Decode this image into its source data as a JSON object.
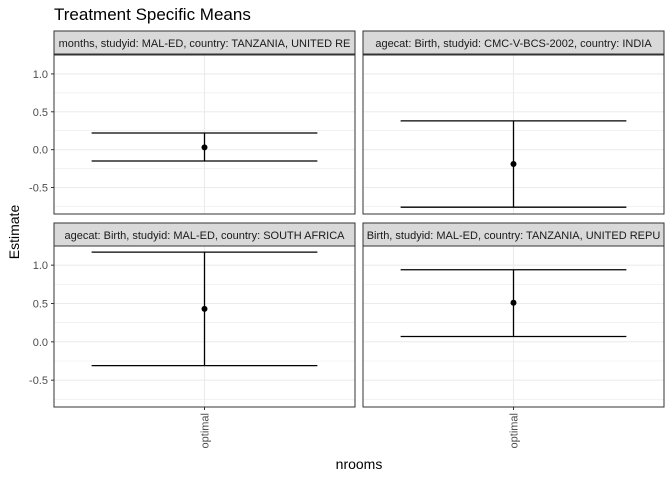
{
  "chart_data": {
    "type": "errorbar",
    "title": "Treatment Specific Means",
    "xlabel": "nrooms",
    "ylabel": "Estimate",
    "ylim": [
      -0.85,
      1.25
    ],
    "yticks": [
      -0.5,
      0.0,
      0.5,
      1.0
    ],
    "ytick_labels": [
      "-0.5",
      "0.0",
      "0.5",
      "1.0"
    ],
    "categories": [
      "optimal"
    ],
    "grid": true,
    "legend": "none",
    "colors": {
      "strip_fill": "#d9d9d9",
      "panel_border": "#333333",
      "grid": "#ebebeb",
      "mark": "#000000"
    },
    "panels": [
      {
        "strip": "months, studyid: MAL-ED, country: TANZANIA, UNITED RE",
        "category": "optimal",
        "estimate": 0.03,
        "lower": -0.15,
        "upper": 0.22
      },
      {
        "strip": "agecat: Birth, studyid: CMC-V-BCS-2002, country: INDIA",
        "category": "optimal",
        "estimate": -0.19,
        "lower": -0.76,
        "upper": 0.38
      },
      {
        "strip": "agecat: Birth, studyid: MAL-ED, country: SOUTH AFRICA",
        "category": "optimal",
        "estimate": 0.43,
        "lower": -0.31,
        "upper": 1.17
      },
      {
        "strip": "Birth, studyid: MAL-ED, country: TANZANIA, UNITED REPU",
        "category": "optimal",
        "estimate": 0.51,
        "lower": 0.07,
        "upper": 0.94
      }
    ]
  }
}
